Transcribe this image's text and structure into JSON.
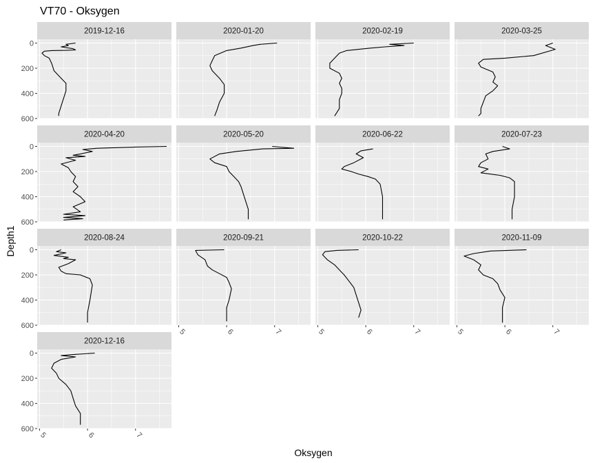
{
  "chart_data": {
    "type": "line",
    "title": "VT70  -  Oksygen",
    "xlabel": "Oksygen",
    "ylabel": "Depth1",
    "xlim": [
      4.95,
      7.75
    ],
    "ylim": [
      600,
      -30
    ],
    "x_ticks": [
      5,
      6,
      7
    ],
    "y_ticks": [
      0,
      200,
      400,
      600
    ],
    "y_reversed": true,
    "grid": true,
    "facet": {
      "ncol": 4,
      "nrow": 4
    },
    "panels": [
      {
        "name": "2019-12-16",
        "points": [
          [
            5.75,
            0
          ],
          [
            5.55,
            10
          ],
          [
            5.6,
            20
          ],
          [
            5.45,
            30
          ],
          [
            5.7,
            45
          ],
          [
            5.75,
            55
          ],
          [
            5.55,
            58
          ],
          [
            5.25,
            60
          ],
          [
            5.1,
            65
          ],
          [
            5.05,
            80
          ],
          [
            5.1,
            100
          ],
          [
            5.2,
            120
          ],
          [
            5.25,
            160
          ],
          [
            5.3,
            220
          ],
          [
            5.45,
            280
          ],
          [
            5.55,
            320
          ],
          [
            5.55,
            380
          ],
          [
            5.5,
            440
          ],
          [
            5.45,
            500
          ],
          [
            5.4,
            560
          ],
          [
            5.4,
            580
          ]
        ]
      },
      {
        "name": "2020-01-20",
        "points": [
          [
            7.05,
            0
          ],
          [
            6.7,
            10
          ],
          [
            6.55,
            20
          ],
          [
            6.3,
            40
          ],
          [
            6.0,
            60
          ],
          [
            5.75,
            100
          ],
          [
            5.7,
            140
          ],
          [
            5.65,
            180
          ],
          [
            5.7,
            220
          ],
          [
            5.85,
            280
          ],
          [
            5.95,
            330
          ],
          [
            5.95,
            400
          ],
          [
            5.85,
            470
          ],
          [
            5.8,
            530
          ],
          [
            5.75,
            580
          ]
        ]
      },
      {
        "name": "2020-02-19",
        "points": [
          [
            7.0,
            0
          ],
          [
            6.5,
            10
          ],
          [
            6.8,
            20
          ],
          [
            6.4,
            30
          ],
          [
            6.1,
            40
          ],
          [
            5.85,
            50
          ],
          [
            5.6,
            60
          ],
          [
            5.45,
            80
          ],
          [
            5.35,
            120
          ],
          [
            5.25,
            160
          ],
          [
            5.25,
            200
          ],
          [
            5.45,
            240
          ],
          [
            5.5,
            280
          ],
          [
            5.45,
            320
          ],
          [
            5.5,
            360
          ],
          [
            5.5,
            400
          ],
          [
            5.45,
            450
          ],
          [
            5.45,
            520
          ],
          [
            5.35,
            580
          ]
        ]
      },
      {
        "name": "2020-03-25",
        "points": [
          [
            7.0,
            0
          ],
          [
            6.85,
            20
          ],
          [
            7.05,
            50
          ],
          [
            6.6,
            100
          ],
          [
            6.0,
            120
          ],
          [
            5.55,
            130
          ],
          [
            5.45,
            160
          ],
          [
            5.5,
            190
          ],
          [
            5.75,
            230
          ],
          [
            5.8,
            270
          ],
          [
            5.75,
            310
          ],
          [
            5.85,
            340
          ],
          [
            5.75,
            380
          ],
          [
            5.6,
            420
          ],
          [
            5.55,
            470
          ],
          [
            5.5,
            520
          ],
          [
            5.5,
            560
          ],
          [
            5.45,
            580
          ]
        ]
      },
      {
        "name": "2020-04-20",
        "points": [
          [
            7.65,
            0
          ],
          [
            7.0,
            5
          ],
          [
            6.2,
            15
          ],
          [
            5.9,
            25
          ],
          [
            6.1,
            40
          ],
          [
            5.85,
            60
          ],
          [
            5.7,
            70
          ],
          [
            5.95,
            80
          ],
          [
            5.55,
            90
          ],
          [
            5.75,
            110
          ],
          [
            5.45,
            140
          ],
          [
            5.6,
            170
          ],
          [
            5.65,
            200
          ],
          [
            5.75,
            240
          ],
          [
            5.7,
            280
          ],
          [
            5.8,
            320
          ],
          [
            5.7,
            360
          ],
          [
            5.85,
            400
          ],
          [
            5.95,
            440
          ],
          [
            5.7,
            480
          ],
          [
            5.85,
            520
          ],
          [
            5.5,
            540
          ],
          [
            5.95,
            550
          ],
          [
            5.5,
            565
          ],
          [
            5.9,
            575
          ],
          [
            5.5,
            585
          ]
        ]
      },
      {
        "name": "2020-05-20",
        "points": [
          [
            6.95,
            0
          ],
          [
            7.4,
            15
          ],
          [
            6.75,
            20
          ],
          [
            6.2,
            40
          ],
          [
            5.85,
            60
          ],
          [
            5.65,
            100
          ],
          [
            5.75,
            130
          ],
          [
            6.0,
            160
          ],
          [
            6.05,
            200
          ],
          [
            6.15,
            240
          ],
          [
            6.25,
            280
          ],
          [
            6.3,
            320
          ],
          [
            6.35,
            380
          ],
          [
            6.4,
            440
          ],
          [
            6.45,
            500
          ],
          [
            6.45,
            580
          ]
        ]
      },
      {
        "name": "2020-06-22",
        "points": [
          [
            6.15,
            20
          ],
          [
            5.9,
            35
          ],
          [
            5.8,
            60
          ],
          [
            5.95,
            90
          ],
          [
            5.75,
            130
          ],
          [
            5.55,
            160
          ],
          [
            5.5,
            180
          ],
          [
            5.7,
            200
          ],
          [
            5.85,
            220
          ],
          [
            6.05,
            240
          ],
          [
            6.2,
            260
          ],
          [
            6.3,
            300
          ],
          [
            6.35,
            400
          ],
          [
            6.35,
            500
          ],
          [
            6.35,
            580
          ]
        ]
      },
      {
        "name": "2020-07-23",
        "points": [
          [
            5.95,
            0
          ],
          [
            6.1,
            20
          ],
          [
            5.75,
            40
          ],
          [
            5.6,
            60
          ],
          [
            5.65,
            100
          ],
          [
            5.5,
            130
          ],
          [
            5.45,
            160
          ],
          [
            5.65,
            180
          ],
          [
            5.5,
            210
          ],
          [
            5.9,
            230
          ],
          [
            6.1,
            250
          ],
          [
            6.2,
            280
          ],
          [
            6.2,
            400
          ],
          [
            6.15,
            500
          ],
          [
            6.15,
            580
          ]
        ]
      },
      {
        "name": "2020-08-24",
        "points": [
          [
            5.45,
            0
          ],
          [
            5.35,
            15
          ],
          [
            5.55,
            25
          ],
          [
            5.3,
            45
          ],
          [
            5.6,
            60
          ],
          [
            5.5,
            70
          ],
          [
            5.75,
            80
          ],
          [
            5.6,
            110
          ],
          [
            5.4,
            140
          ],
          [
            5.45,
            170
          ],
          [
            5.55,
            190
          ],
          [
            5.85,
            200
          ],
          [
            6.05,
            230
          ],
          [
            6.1,
            280
          ],
          [
            6.05,
            400
          ],
          [
            6.0,
            500
          ],
          [
            6.0,
            580
          ]
        ]
      },
      {
        "name": "2020-09-21",
        "points": [
          [
            5.95,
            0
          ],
          [
            5.35,
            5
          ],
          [
            5.4,
            40
          ],
          [
            5.55,
            80
          ],
          [
            5.6,
            130
          ],
          [
            5.7,
            160
          ],
          [
            5.85,
            190
          ],
          [
            6.0,
            220
          ],
          [
            6.05,
            260
          ],
          [
            6.1,
            310
          ],
          [
            6.05,
            400
          ],
          [
            6.0,
            460
          ],
          [
            6.0,
            570
          ]
        ]
      },
      {
        "name": "2020-10-22",
        "points": [
          [
            5.85,
            0
          ],
          [
            5.4,
            5
          ],
          [
            5.15,
            15
          ],
          [
            5.1,
            40
          ],
          [
            5.2,
            80
          ],
          [
            5.35,
            120
          ],
          [
            5.45,
            160
          ],
          [
            5.55,
            200
          ],
          [
            5.65,
            250
          ],
          [
            5.75,
            300
          ],
          [
            5.8,
            360
          ],
          [
            5.85,
            420
          ],
          [
            5.9,
            480
          ],
          [
            5.85,
            540
          ]
        ]
      },
      {
        "name": "2020-11-09",
        "points": [
          [
            6.45,
            0
          ],
          [
            5.7,
            10
          ],
          [
            5.35,
            30
          ],
          [
            5.15,
            50
          ],
          [
            5.35,
            80
          ],
          [
            5.5,
            120
          ],
          [
            5.45,
            160
          ],
          [
            5.55,
            200
          ],
          [
            5.75,
            230
          ],
          [
            5.85,
            270
          ],
          [
            5.9,
            320
          ],
          [
            6.0,
            380
          ],
          [
            5.95,
            460
          ],
          [
            5.95,
            540
          ],
          [
            5.95,
            580
          ]
        ]
      },
      {
        "name": "2020-12-16",
        "points": [
          [
            6.15,
            0
          ],
          [
            5.75,
            10
          ],
          [
            5.45,
            20
          ],
          [
            5.75,
            30
          ],
          [
            5.45,
            50
          ],
          [
            5.3,
            80
          ],
          [
            5.25,
            120
          ],
          [
            5.35,
            160
          ],
          [
            5.4,
            200
          ],
          [
            5.55,
            250
          ],
          [
            5.65,
            300
          ],
          [
            5.7,
            360
          ],
          [
            5.75,
            420
          ],
          [
            5.85,
            480
          ],
          [
            5.85,
            540
          ],
          [
            5.85,
            570
          ]
        ]
      }
    ]
  }
}
